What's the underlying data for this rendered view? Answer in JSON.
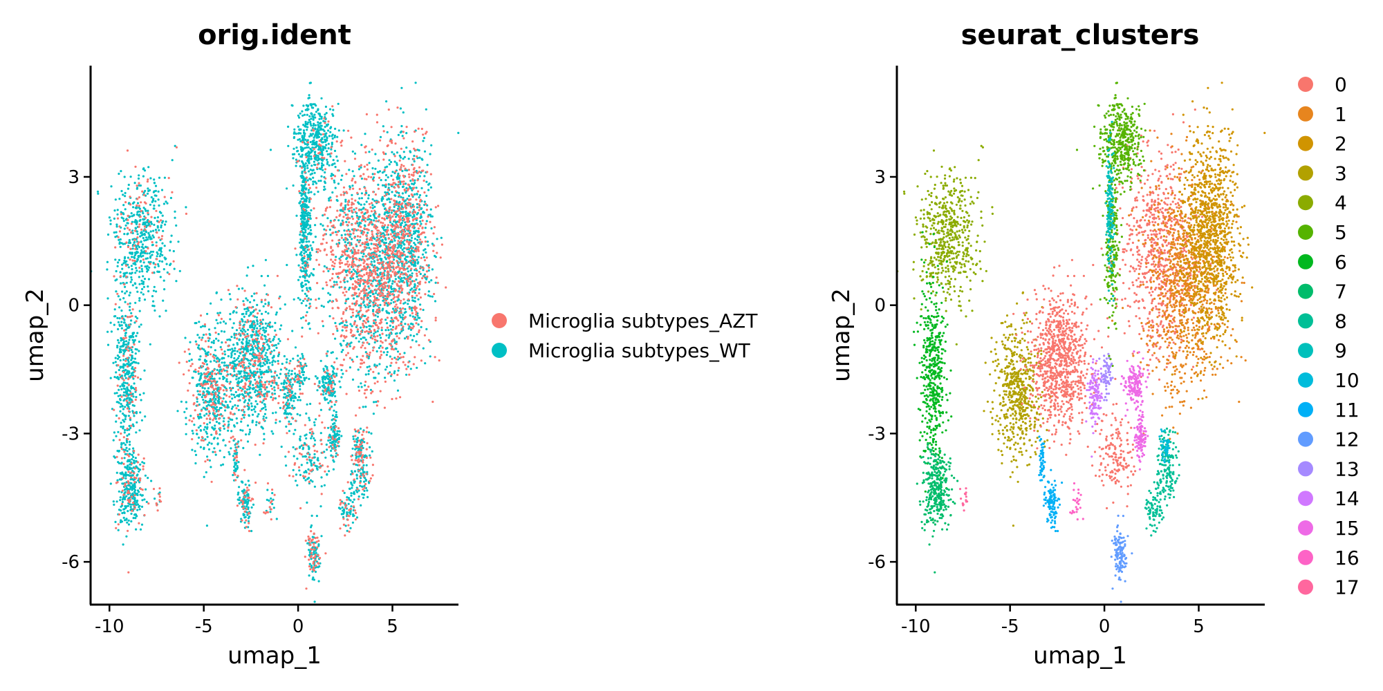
{
  "chart_data": [
    {
      "type": "scatter",
      "title": "orig.ident",
      "xlabel": "umap_1",
      "ylabel": "umap_2",
      "xlim": [
        -11.0,
        8.5
      ],
      "ylim": [
        -7.0,
        5.6
      ],
      "xticks": [
        -10,
        -5,
        0,
        5
      ],
      "yticks": [
        3,
        0,
        -3,
        -6
      ],
      "xtick_labels": [
        "-10",
        "-5",
        "0",
        "5"
      ],
      "ytick_labels": [
        "3",
        "0",
        "-3",
        "-6"
      ],
      "grid": false,
      "legend_position": "right",
      "legend_title": "",
      "series": [
        {
          "name": "Microglia subtypes_AZT",
          "color": "#F8766D"
        },
        {
          "name": "Microglia subtypes_WT",
          "color": "#00BFC4"
        }
      ]
    },
    {
      "type": "scatter",
      "title": "seurat_clusters",
      "xlabel": "umap_1",
      "ylabel": "umap_2",
      "xlim": [
        -11.0,
        8.5
      ],
      "ylim": [
        -7.0,
        5.6
      ],
      "xticks": [
        -10,
        -5,
        0,
        5
      ],
      "yticks": [
        3,
        0,
        -3,
        -6
      ],
      "xtick_labels": [
        "-10",
        "-5",
        "0",
        "5"
      ],
      "ytick_labels": [
        "3",
        "0",
        "-3",
        "-6"
      ],
      "grid": false,
      "legend_position": "right",
      "legend_title": "",
      "series": [
        {
          "name": "0",
          "color": "#F8766D"
        },
        {
          "name": "1",
          "color": "#E7851E"
        },
        {
          "name": "2",
          "color": "#D09400"
        },
        {
          "name": "3",
          "color": "#B2A100"
        },
        {
          "name": "4",
          "color": "#8BAB00"
        },
        {
          "name": "5",
          "color": "#55B300"
        },
        {
          "name": "6",
          "color": "#00B81F"
        },
        {
          "name": "7",
          "color": "#00BC6B"
        },
        {
          "name": "8",
          "color": "#00BF96"
        },
        {
          "name": "9",
          "color": "#00C0BB"
        },
        {
          "name": "10",
          "color": "#00BCDB"
        },
        {
          "name": "11",
          "color": "#00B0F6"
        },
        {
          "name": "12",
          "color": "#619CFF"
        },
        {
          "name": "13",
          "color": "#A58AFF"
        },
        {
          "name": "14",
          "color": "#D078FF"
        },
        {
          "name": "15",
          "color": "#EE6AE6"
        },
        {
          "name": "16",
          "color": "#FD63C6"
        },
        {
          "name": "17",
          "color": "#FF679E"
        }
      ]
    }
  ]
}
